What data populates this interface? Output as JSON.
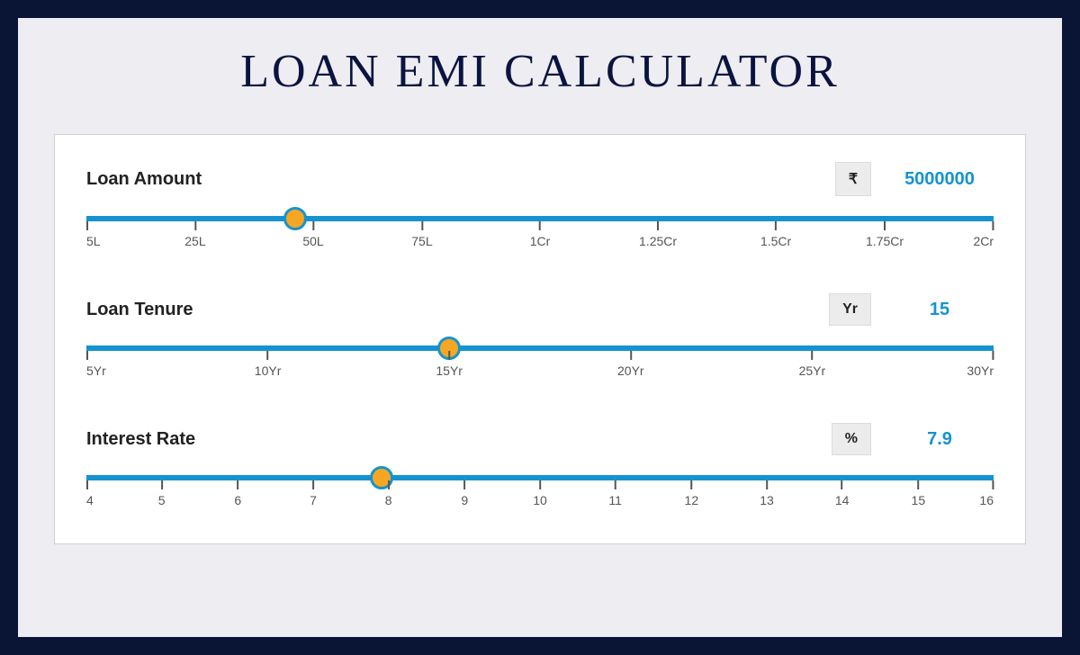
{
  "title": "LOAN EMI CALCULATOR",
  "colors": {
    "page_bg": "#0a1435",
    "frame_bg": "#ededf2",
    "panel_bg": "#ffffff",
    "panel_border": "#d0d0d0",
    "title_color": "#0a1440",
    "track_color": "#1593d0",
    "thumb_fill": "#f5a623",
    "thumb_border": "#1593d0",
    "value_color": "#1593d0",
    "unit_bg": "#ececec",
    "tick_color": "#555555"
  },
  "typography": {
    "title_fontsize": 52,
    "label_fontsize": 20,
    "value_fontsize": 20,
    "tick_fontsize": 14
  },
  "sliders": {
    "loan_amount": {
      "label": "Loan Amount",
      "unit": "₹",
      "value": "5000000",
      "thumb_percent": 23,
      "ticks": [
        {
          "pos": 0,
          "label": "5L"
        },
        {
          "pos": 12,
          "label": "25L"
        },
        {
          "pos": 25,
          "label": "50L"
        },
        {
          "pos": 37,
          "label": "75L"
        },
        {
          "pos": 50,
          "label": "1Cr"
        },
        {
          "pos": 63,
          "label": "1.25Cr"
        },
        {
          "pos": 76,
          "label": "1.5Cr"
        },
        {
          "pos": 88,
          "label": "1.75Cr"
        },
        {
          "pos": 100,
          "label": "2Cr"
        }
      ]
    },
    "loan_tenure": {
      "label": "Loan Tenure",
      "unit": "Yr",
      "value": "15",
      "thumb_percent": 40,
      "ticks": [
        {
          "pos": 0,
          "label": "5Yr"
        },
        {
          "pos": 20,
          "label": "10Yr"
        },
        {
          "pos": 40,
          "label": "15Yr"
        },
        {
          "pos": 60,
          "label": "20Yr"
        },
        {
          "pos": 80,
          "label": "25Yr"
        },
        {
          "pos": 100,
          "label": "30Yr"
        }
      ]
    },
    "interest_rate": {
      "label": "Interest Rate",
      "unit": "%",
      "value": "7.9",
      "thumb_percent": 32.5,
      "ticks": [
        {
          "pos": 0,
          "label": "4"
        },
        {
          "pos": 8.3,
          "label": "5"
        },
        {
          "pos": 16.7,
          "label": "6"
        },
        {
          "pos": 25,
          "label": "7"
        },
        {
          "pos": 33.3,
          "label": "8"
        },
        {
          "pos": 41.7,
          "label": "9"
        },
        {
          "pos": 50,
          "label": "10"
        },
        {
          "pos": 58.3,
          "label": "11"
        },
        {
          "pos": 66.7,
          "label": "12"
        },
        {
          "pos": 75,
          "label": "13"
        },
        {
          "pos": 83.3,
          "label": "14"
        },
        {
          "pos": 91.7,
          "label": "15"
        },
        {
          "pos": 100,
          "label": "16"
        }
      ]
    }
  }
}
